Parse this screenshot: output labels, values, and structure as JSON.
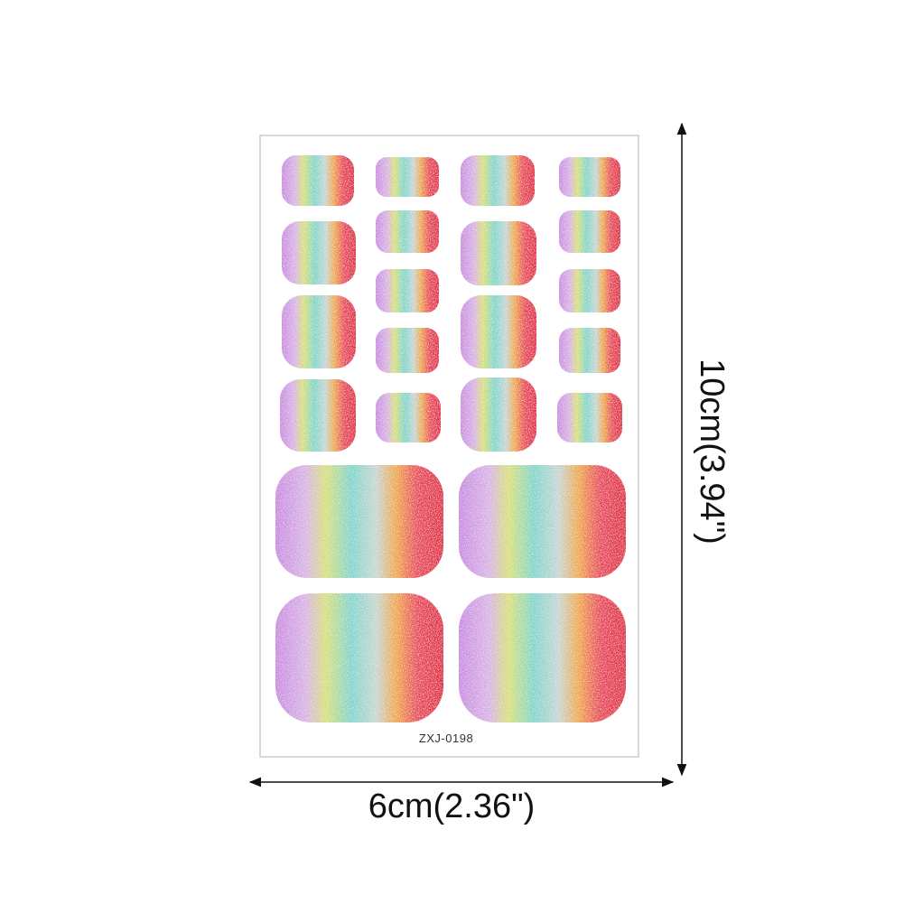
{
  "sheet": {
    "code": "ZXJ-0198"
  },
  "dimensions": {
    "width": "6cm(2.36\")",
    "height": "10cm(3.94\")"
  }
}
